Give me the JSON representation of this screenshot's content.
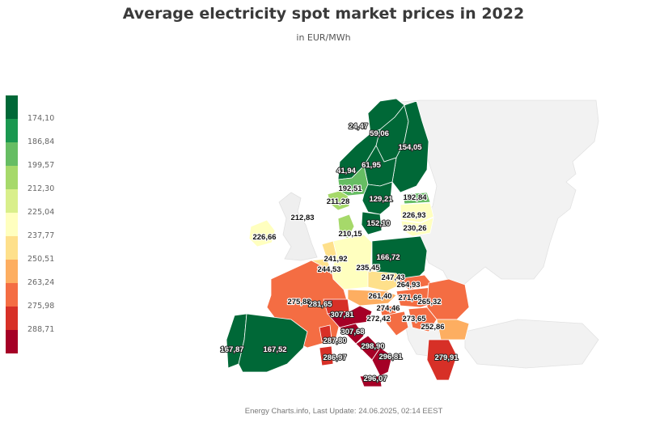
{
  "header": {
    "title": "Average electricity spot market prices in 2022",
    "subtitle": "in EUR/MWh"
  },
  "footer": {
    "credit": "Energy Charts.info, Last Update: 24.06.2025, 02:14 EEST"
  },
  "legend": {
    "thresholds": [
      "174,10",
      "186,84",
      "199,57",
      "212,30",
      "225,04",
      "237,77",
      "250,51",
      "263,24",
      "275,98",
      "288,71"
    ],
    "colors": [
      "#006837",
      "#1a9850",
      "#66bd63",
      "#a6d96a",
      "#d9ef8b",
      "#ffffbf",
      "#fee08b",
      "#fdae61",
      "#f46d43",
      "#d73027",
      "#a50026"
    ]
  },
  "chart_data": {
    "type": "choropleth",
    "title": "Average electricity spot market prices in 2022",
    "unit": "EUR/MWh",
    "regions": [
      {
        "id": "NO4",
        "label": "24,47",
        "value": 24.47,
        "color": "#006837"
      },
      {
        "id": "SE1",
        "label": "59,06",
        "value": 59.06,
        "color": "#006837"
      },
      {
        "id": "FI",
        "label": "154,05",
        "value": 154.05,
        "color": "#006837"
      },
      {
        "id": "NO3",
        "label": "41,94",
        "value": 41.94,
        "color": "#006837"
      },
      {
        "id": "SE2",
        "label": "61,95",
        "value": 61.95,
        "color": "#006837"
      },
      {
        "id": "NO1",
        "label": "192,51",
        "value": 192.51,
        "color": "#66bd63"
      },
      {
        "id": "NO2",
        "label": "211,28",
        "value": 211.28,
        "color": "#a6d96a"
      },
      {
        "id": "SE3",
        "label": "129,21",
        "value": 129.21,
        "color": "#006837"
      },
      {
        "id": "EE",
        "label": "192,84",
        "value": 192.84,
        "color": "#66bd63"
      },
      {
        "id": "LV",
        "label": "226,93",
        "value": 226.93,
        "color": "#ffffbf"
      },
      {
        "id": "LT",
        "label": "230,26",
        "value": 230.26,
        "color": "#ffffbf"
      },
      {
        "id": "GB",
        "label": "212,83",
        "value": 212.83,
        "color": "#eeeeee"
      },
      {
        "id": "SE4",
        "label": "152,10",
        "value": 152.1,
        "color": "#006837"
      },
      {
        "id": "DK1",
        "label": "210,15",
        "value": 210.15,
        "color": "#a6d96a"
      },
      {
        "id": "IE",
        "label": "226,66",
        "value": 226.66,
        "color": "#ffffbf"
      },
      {
        "id": "NL",
        "label": "241,92",
        "value": 241.92,
        "color": "#fee08b"
      },
      {
        "id": "BE",
        "label": "244,53",
        "value": 244.53,
        "color": "#fee08b"
      },
      {
        "id": "DE",
        "label": "235,45",
        "value": 235.45,
        "color": "#ffffbf"
      },
      {
        "id": "PL",
        "label": "166,72",
        "value": 166.72,
        "color": "#006837"
      },
      {
        "id": "CZ",
        "label": "247,43",
        "value": 247.43,
        "color": "#fee08b"
      },
      {
        "id": "SK",
        "label": "264,93",
        "value": 264.93,
        "color": "#f46d43"
      },
      {
        "id": "AT",
        "label": "261,40",
        "value": 261.4,
        "color": "#fdae61"
      },
      {
        "id": "HU",
        "label": "271,66",
        "value": 271.66,
        "color": "#f46d43"
      },
      {
        "id": "RO",
        "label": "265,32",
        "value": 265.32,
        "color": "#f46d43"
      },
      {
        "id": "FR",
        "label": "275,88",
        "value": 275.88,
        "color": "#f46d43"
      },
      {
        "id": "CH",
        "label": "281,65",
        "value": 281.65,
        "color": "#d73027"
      },
      {
        "id": "SI",
        "label": "274,46",
        "value": 274.46,
        "color": "#f46d43"
      },
      {
        "id": "HR",
        "label": "272,42",
        "value": 272.42,
        "color": "#f46d43"
      },
      {
        "id": "RS",
        "label": "273,65",
        "value": 273.65,
        "color": "#f46d43"
      },
      {
        "id": "BG",
        "label": "252,86",
        "value": 252.86,
        "color": "#fdae61"
      },
      {
        "id": "IT-North",
        "label": "307,81",
        "value": 307.81,
        "color": "#a50026"
      },
      {
        "id": "IT-Centre-North",
        "label": "307,68",
        "value": 307.68,
        "color": "#a50026"
      },
      {
        "id": "IT-Corsica",
        "label": "287,80",
        "value": 287.8,
        "color": "#d73027"
      },
      {
        "id": "IT-Centre-South",
        "label": "298,90",
        "value": 298.9,
        "color": "#a50026"
      },
      {
        "id": "IT-Sardinia",
        "label": "286,97",
        "value": 286.97,
        "color": "#d73027"
      },
      {
        "id": "IT-South",
        "label": "296,81",
        "value": 296.81,
        "color": "#a50026"
      },
      {
        "id": "GR",
        "label": "279,91",
        "value": 279.91,
        "color": "#d73027"
      },
      {
        "id": "PT",
        "label": "167,87",
        "value": 167.87,
        "color": "#006837"
      },
      {
        "id": "ES",
        "label": "167,52",
        "value": 167.52,
        "color": "#006837"
      },
      {
        "id": "IT-Sicily",
        "label": "296,07",
        "value": 296.07,
        "color": "#a50026"
      }
    ]
  }
}
